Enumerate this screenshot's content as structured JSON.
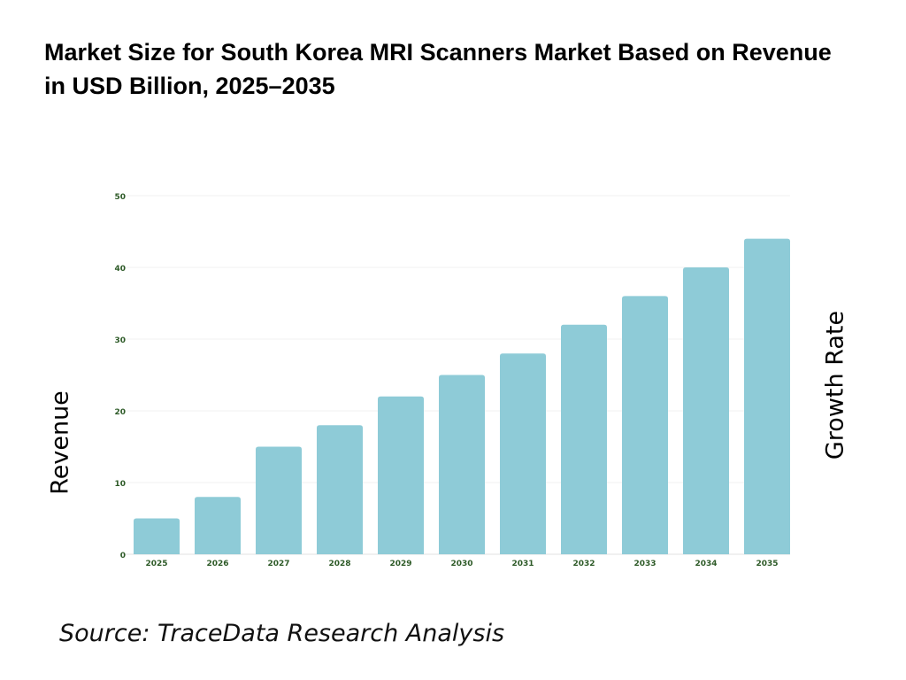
{
  "chart_data": {
    "type": "bar",
    "title": "Market Size for South Korea MRI Scanners Market Based on Revenue in USD Billion, 2025–2035",
    "categories": [
      "2025",
      "2026",
      "2027",
      "2028",
      "2029",
      "2030",
      "2031",
      "2032",
      "2033",
      "2034",
      "2035"
    ],
    "values": [
      5,
      8,
      15,
      18,
      22,
      25,
      28,
      32,
      36,
      40,
      44
    ],
    "ylabel": "Revenue",
    "y2label": "Growth Rate",
    "xlabel": "",
    "ylim": [
      0,
      50
    ],
    "yticks": [
      0,
      10,
      20,
      30,
      40,
      50
    ],
    "grid": true,
    "bar_color": "#8ECBD7",
    "tick_color": "#2D5A27",
    "source": "Source: TraceData Research Analysis"
  }
}
